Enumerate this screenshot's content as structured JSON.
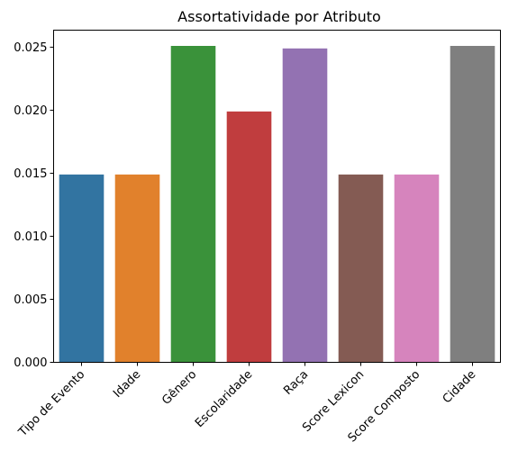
{
  "chart_data": {
    "type": "bar",
    "title": "Assortatividade por Atributo",
    "xlabel": "",
    "ylabel": "",
    "categories": [
      "Tipo de Evento",
      "Idade",
      "Gênero",
      "Escolaridade",
      "Raça",
      "Score Lexicon",
      "Score Composto",
      "Cidade"
    ],
    "values": [
      0.0149,
      0.0149,
      0.0251,
      0.0199,
      0.0249,
      0.0149,
      0.0149,
      0.0251
    ],
    "colors": [
      "#3274a1",
      "#e1812c",
      "#3a923a",
      "#c03d3e",
      "#9372b2",
      "#845b53",
      "#d684bd",
      "#7f7f7f"
    ],
    "ylim": [
      0,
      0.02635
    ],
    "yticks": [
      0,
      0.005,
      0.01,
      0.015,
      0.02,
      0.025
    ],
    "ytick_labels": [
      "0.000",
      "0.005",
      "0.010",
      "0.015",
      "0.020",
      "0.025"
    ],
    "grid": false,
    "legend": "none"
  }
}
